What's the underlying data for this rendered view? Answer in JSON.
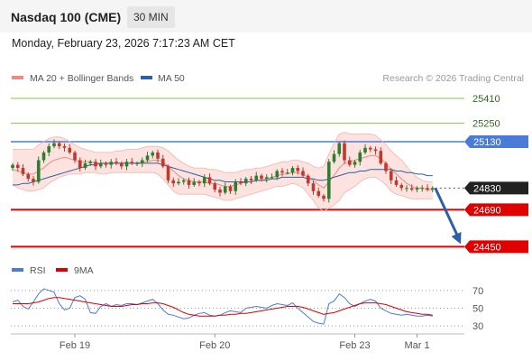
{
  "header": {
    "title": "Nasdaq 100 (CME)",
    "timeframe": "30 MIN"
  },
  "datetime": "Monday, February 23, 2026 7:17:23 AM CET",
  "copyright": "Research © 2026 Trading Central",
  "colors": {
    "bollinger": "#f08a80",
    "ma50": "#2e5f9e",
    "bull": "#2f7d2f",
    "bear": "#c0392b",
    "resistance": "#8bc34a",
    "pivot": "#4a7bd8",
    "support": "#e00000",
    "last": "#222222",
    "rsi": "#4a7bd8",
    "rsi_ma": "#e00000",
    "arrow": "#2e5fa8"
  },
  "chart_data": [
    {
      "type": "candlestick",
      "legend": [
        {
          "name": "MA 20 + Bollinger Bands",
          "color": "#f08a80"
        },
        {
          "name": "MA 50",
          "color": "#2e5f9e"
        }
      ],
      "ylim": [
        24400,
        25480
      ],
      "last_price": 24830,
      "levels": [
        {
          "value": 25410,
          "label": "25410",
          "kind": "resistance"
        },
        {
          "value": 25250,
          "label": "25250",
          "kind": "resistance"
        },
        {
          "value": 25130,
          "label": "25130",
          "kind": "pivot"
        },
        {
          "value": 24830,
          "label": "24830",
          "kind": "last"
        },
        {
          "value": 24690,
          "label": "24690",
          "kind": "support"
        },
        {
          "value": 24450,
          "label": "24450",
          "kind": "support"
        }
      ],
      "x_ticks": [
        {
          "label": "Feb 19",
          "index": 12
        },
        {
          "label": "Feb 20",
          "index": 39
        },
        {
          "label": "Feb 23",
          "index": 66
        },
        {
          "label": "Mar 1",
          "index": 78
        }
      ],
      "closes": [
        24980,
        24960,
        24920,
        24890,
        24870,
        25010,
        25060,
        25100,
        25120,
        25100,
        25090,
        25060,
        25010,
        24960,
        24990,
        25000,
        24970,
        24990,
        24980,
        25000,
        24990,
        24970,
        25000,
        24990,
        24990,
        25010,
        25040,
        25060,
        25020,
        24970,
        24880,
        24860,
        24870,
        24880,
        24850,
        24870,
        24860,
        24900,
        24860,
        24820,
        24800,
        24840,
        24810,
        24870,
        24860,
        24890,
        24880,
        24910,
        24890,
        24900,
        24900,
        24940,
        24930,
        24930,
        24960,
        24940,
        24910,
        24860,
        24810,
        24780,
        24760,
        25000,
        25050,
        25120,
        25010,
        24980,
        25000,
        25060,
        25090,
        25080,
        25070,
        24990,
        24940,
        24880,
        24850,
        24830,
        24830,
        24820,
        24830,
        24830,
        24820,
        24830
      ],
      "bollinger_upper": [
        25080,
        25080,
        25080,
        25080,
        25080,
        25110,
        25130,
        25150,
        25160,
        25160,
        25150,
        25130,
        25110,
        25090,
        25080,
        25070,
        25060,
        25060,
        25060,
        25060,
        25070,
        25070,
        25080,
        25080,
        25080,
        25090,
        25100,
        25100,
        25100,
        25090,
        25070,
        25040,
        25010,
        24990,
        24970,
        24960,
        24960,
        24960,
        24950,
        24950,
        24940,
        24930,
        24930,
        24930,
        24940,
        24950,
        24950,
        24960,
        24960,
        24970,
        24980,
        24990,
        25000,
        25000,
        25010,
        25010,
        25000,
        24990,
        24970,
        24960,
        24970,
        25050,
        25120,
        25180,
        25190,
        25180,
        25180,
        25180,
        25180,
        25180,
        25170,
        25140,
        25110,
        25070,
        25040,
        25010,
        24970,
        24930,
        24900,
        24880,
        24870,
        24870
      ],
      "bollinger_lower": [
        24850,
        24830,
        24820,
        24810,
        24810,
        24820,
        24830,
        24860,
        24880,
        24900,
        24910,
        24920,
        24920,
        24920,
        24930,
        24930,
        24930,
        24920,
        24920,
        24930,
        24930,
        24930,
        24930,
        24930,
        24930,
        24930,
        24930,
        24930,
        24920,
        24890,
        24850,
        24810,
        24790,
        24790,
        24790,
        24790,
        24790,
        24790,
        24780,
        24770,
        24760,
        24750,
        24750,
        24760,
        24770,
        24780,
        24790,
        24800,
        24810,
        24820,
        24830,
        24840,
        24840,
        24850,
        24860,
        24850,
        24830,
        24790,
        24750,
        24700,
        24680,
        24700,
        24720,
        24750,
        24800,
        24820,
        24840,
        24870,
        24890,
        24900,
        24900,
        24880,
        24850,
        24810,
        24790,
        24780,
        24770,
        24760,
        24760,
        24760,
        24760,
        24760
      ],
      "ma20": [
        24950,
        24940,
        24930,
        24920,
        24920,
        24940,
        24960,
        24990,
        25010,
        25020,
        25030,
        25020,
        25010,
        25000,
        25000,
        25000,
        24990,
        24990,
        24990,
        24990,
        24990,
        24990,
        24990,
        24990,
        24990,
        25000,
        25000,
        25010,
        25010,
        25000,
        24970,
        24940,
        24910,
        24890,
        24880,
        24870,
        24870,
        24870,
        24860,
        24860,
        24850,
        24840,
        24840,
        24850,
        24860,
        24870,
        24870,
        24880,
        24880,
        24890,
        24900,
        24910,
        24920,
        24920,
        24930,
        24930,
        24920,
        24900,
        24880,
        24850,
        24830,
        24870,
        24910,
        24960,
        24990,
        25000,
        25010,
        25020,
        25030,
        25040,
        25040,
        25020,
        24990,
        24950,
        24920,
        24890,
        24860,
        24840,
        24830,
        24830,
        24820,
        24820
      ],
      "ma50": [
        24850,
        24850,
        24860,
        24860,
        24870,
        24880,
        24890,
        24900,
        24910,
        24920,
        24930,
        24940,
        24950,
        24960,
        24970,
        24980,
        24980,
        24990,
        24990,
        24990,
        24990,
        24990,
        24990,
        24990,
        24990,
        24990,
        24990,
        24990,
        24990,
        24980,
        24970,
        24960,
        24950,
        24940,
        24930,
        24920,
        24910,
        24900,
        24890,
        24880,
        24880,
        24870,
        24870,
        24870,
        24870,
        24870,
        24870,
        24880,
        24880,
        24880,
        24890,
        24890,
        24900,
        24900,
        24900,
        24900,
        24900,
        24890,
        24890,
        24880,
        24880,
        24890,
        24900,
        24910,
        24920,
        24930,
        24930,
        24940,
        24940,
        24950,
        24950,
        24950,
        24950,
        24950,
        24940,
        24940,
        24930,
        24930,
        24920,
        24920,
        24910,
        24910
      ]
    },
    {
      "type": "line",
      "legend": [
        {
          "name": "RSI",
          "color": "#4a7bd8"
        },
        {
          "name": "9MA",
          "color": "#e00000"
        }
      ],
      "ylim": [
        25,
        80
      ],
      "ticks": [
        70,
        50,
        30
      ],
      "series": [
        {
          "name": "RSI",
          "values": [
            57,
            59,
            52,
            49,
            57,
            66,
            72,
            70,
            68,
            55,
            48,
            50,
            62,
            64,
            60,
            45,
            44,
            52,
            55,
            52,
            54,
            53,
            55,
            55,
            54,
            56,
            58,
            60,
            55,
            48,
            43,
            42,
            40,
            38,
            39,
            42,
            44,
            45,
            42,
            41,
            42,
            45,
            47,
            46,
            45,
            50,
            51,
            52,
            51,
            50,
            53,
            55,
            54,
            53,
            56,
            50,
            45,
            40,
            35,
            33,
            32,
            55,
            58,
            66,
            62,
            55,
            52,
            55,
            58,
            60,
            58,
            50,
            47,
            44,
            43,
            42,
            43,
            42,
            41,
            41,
            42,
            41
          ]
        },
        {
          "name": "9MA",
          "values": [
            55,
            55,
            55,
            55,
            56,
            57,
            59,
            61,
            62,
            62,
            61,
            60,
            59,
            58,
            57,
            56,
            55,
            54,
            53,
            52,
            52,
            52,
            53,
            54,
            54,
            55,
            55,
            56,
            56,
            55,
            53,
            51,
            48,
            45,
            43,
            42,
            41,
            41,
            41,
            41,
            42,
            42,
            43,
            43,
            44,
            44,
            45,
            46,
            47,
            48,
            49,
            50,
            51,
            52,
            52,
            52,
            51,
            49,
            47,
            45,
            43,
            44,
            45,
            47,
            49,
            51,
            53,
            55,
            56,
            56,
            56,
            55,
            54,
            52,
            50,
            48,
            46,
            45,
            44,
            43,
            43,
            42
          ]
        }
      ]
    }
  ]
}
